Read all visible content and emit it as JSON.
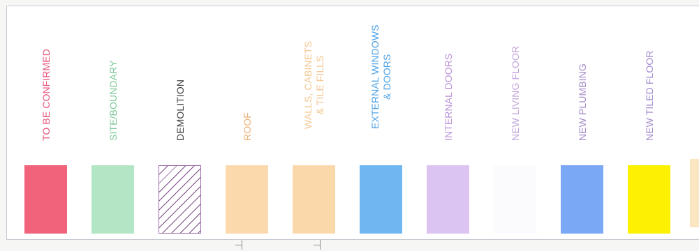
{
  "legend": {
    "items": [
      {
        "label": "TO BE CONFIRMED",
        "text_color": "#e8557a",
        "swatch_color": "#f0637a",
        "lines": 1
      },
      {
        "label": "SITE/BOUNDARY",
        "text_color": "#7fc99a",
        "swatch_color": "#b3e6c4",
        "lines": 1
      },
      {
        "label": "DEMOLITION",
        "text_color": "#444444",
        "swatch_pattern": "hatched",
        "swatch_color": "#7a4a86",
        "lines": 1
      },
      {
        "label": "ROOF",
        "text_color": "#f0b074",
        "swatch_color": "#fcd9ad",
        "lines": 1
      },
      {
        "label": "WALLS, CABINETS\n& TILE FILLS",
        "text_color": "#f4c792",
        "swatch_color": "#fbd8aa",
        "lines": 2
      },
      {
        "label": "EXTERNAL WINDOWS\n& DOORS",
        "text_color": "#4fa3e6",
        "swatch_color": "#6fb7f0",
        "lines": 2
      },
      {
        "label": "INTERNAL DOORS",
        "text_color": "#bb92d8",
        "swatch_color": "#dcc4f2",
        "lines": 1
      },
      {
        "label": "NEW LIVING FLOOR",
        "text_color": "#c3a6dc",
        "swatch_color": "#fbfbfd",
        "lines": 1
      },
      {
        "label": "NEW PLUMBING",
        "text_color": "#a58bc9",
        "swatch_color": "#7aa8f4",
        "lines": 1
      },
      {
        "label": "NEW TILED FLOOR",
        "text_color": "#a48bd0",
        "swatch_color": "#fdf000",
        "lines": 1
      }
    ]
  }
}
